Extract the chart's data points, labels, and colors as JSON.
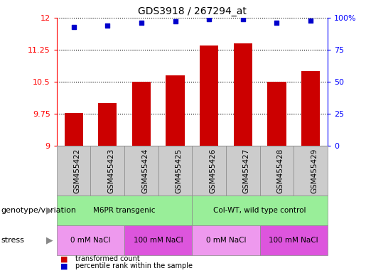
{
  "title": "GDS3918 / 267294_at",
  "samples": [
    "GSM455422",
    "GSM455423",
    "GSM455424",
    "GSM455425",
    "GSM455426",
    "GSM455427",
    "GSM455428",
    "GSM455429"
  ],
  "red_values": [
    9.78,
    10.0,
    10.5,
    10.65,
    11.35,
    11.4,
    10.5,
    10.75
  ],
  "blue_values_pct": [
    93,
    94,
    96,
    97,
    99,
    99,
    96,
    98
  ],
  "ylim_left": [
    9.0,
    12.0
  ],
  "ylim_right": [
    0,
    100
  ],
  "yticks_left": [
    9.0,
    9.75,
    10.5,
    11.25,
    12.0
  ],
  "ytick_labels_left": [
    "9",
    "9.75",
    "10.5",
    "11.25",
    "12"
  ],
  "yticks_right": [
    0,
    25,
    50,
    75,
    100
  ],
  "ytick_labels_right": [
    "0",
    "25",
    "50",
    "75",
    "100%"
  ],
  "bar_color": "#cc0000",
  "dot_color": "#0000cc",
  "genotype_groups": [
    {
      "label": "M6PR transgenic",
      "start": 0,
      "end": 4,
      "color": "#99ee99"
    },
    {
      "label": "Col-WT, wild type control",
      "start": 4,
      "end": 8,
      "color": "#99ee99"
    }
  ],
  "stress_groups": [
    {
      "label": "0 mM NaCl",
      "start": 0,
      "end": 2,
      "color": "#ee99ee"
    },
    {
      "label": "100 mM NaCl",
      "start": 2,
      "end": 4,
      "color": "#dd55dd"
    },
    {
      "label": "0 mM NaCl",
      "start": 4,
      "end": 6,
      "color": "#ee99ee"
    },
    {
      "label": "100 mM NaCl",
      "start": 6,
      "end": 8,
      "color": "#dd55dd"
    }
  ],
  "legend_red_label": "transformed count",
  "legend_blue_label": "percentile rank within the sample",
  "genotype_label": "genotype/variation",
  "stress_label": "stress",
  "bar_width": 0.55,
  "xticklabel_fontsize": 7.5,
  "title_fontsize": 10,
  "annotation_fontsize": 7.5,
  "label_fontsize": 8
}
